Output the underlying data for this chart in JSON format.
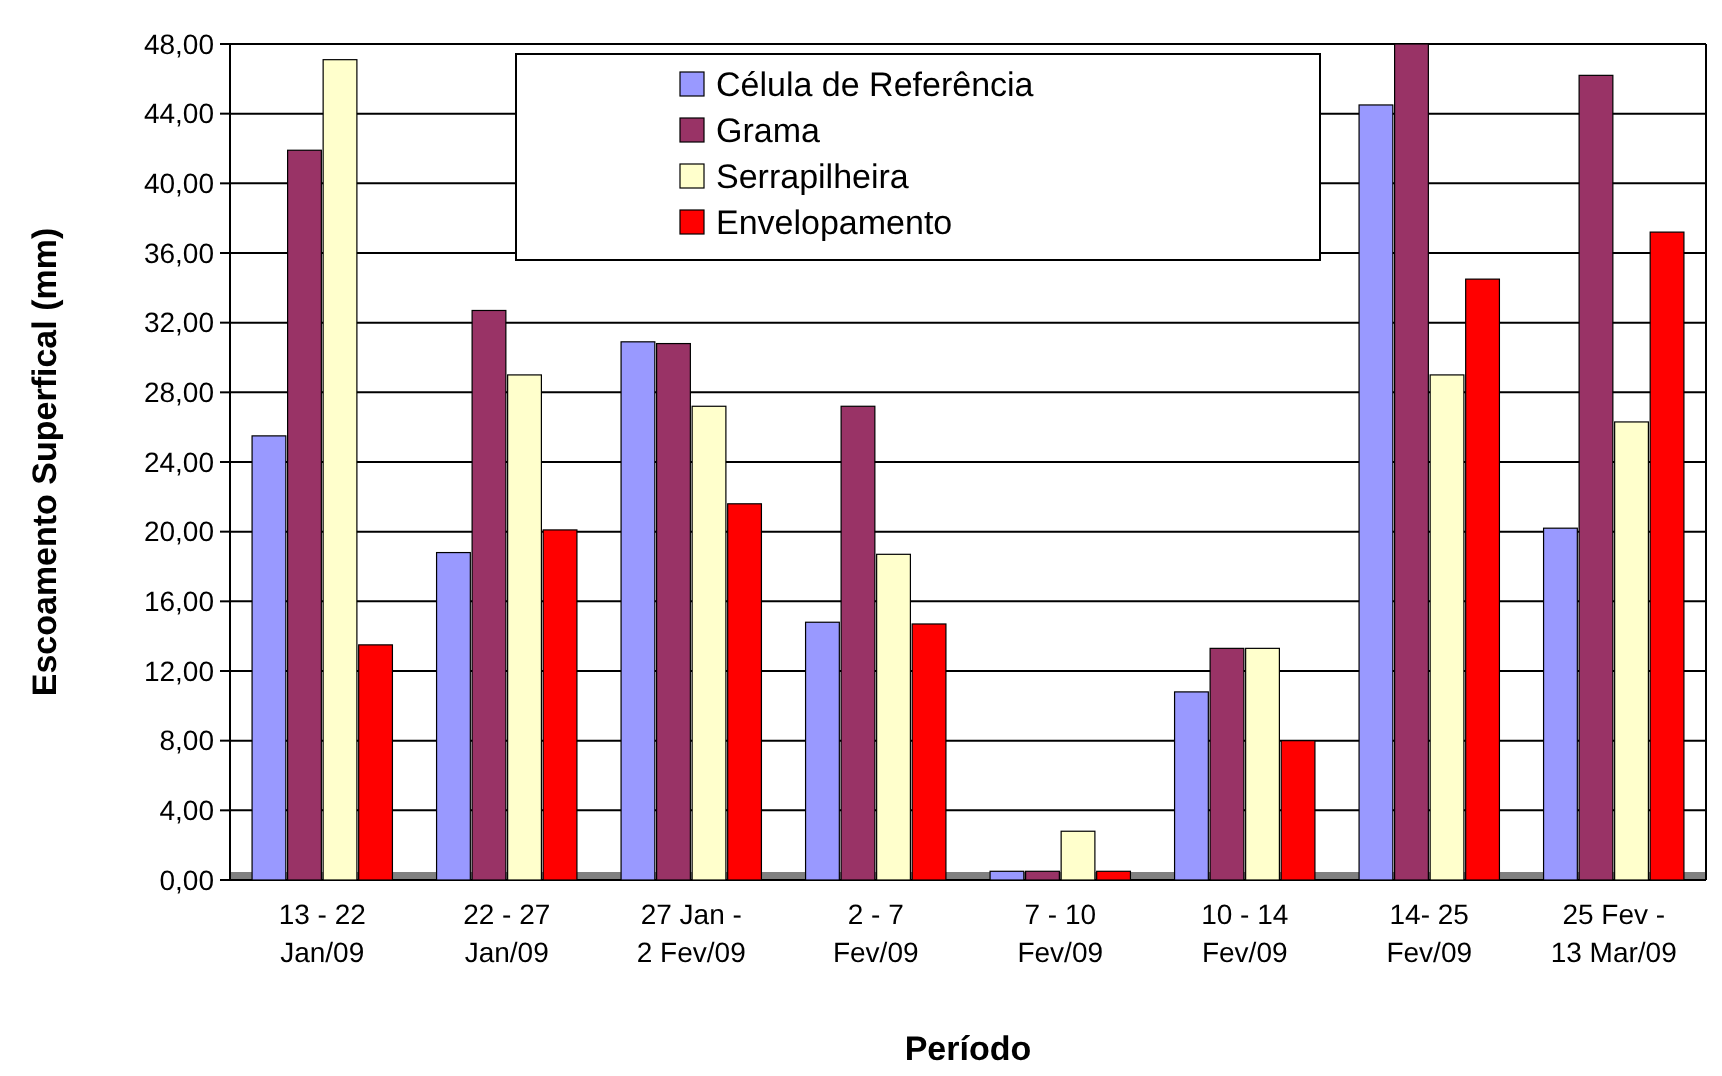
{
  "chart_data": {
    "type": "bar",
    "xlabel": "Período",
    "ylabel": "Escoamento Superfical (mm)",
    "categories": [
      "13 - 22\nJan/09",
      "22 - 27\nJan/09",
      "27 Jan -\n2 Fev/09",
      "2 - 7\nFev/09",
      "7 - 10\nFev/09",
      "10 - 14\nFev/09",
      "14- 25\nFev/09",
      "25 Fev -\n13 Mar/09"
    ],
    "series": [
      {
        "name": "Célula de Referência",
        "color": "#9999ff",
        "values": [
          25.5,
          18.8,
          30.9,
          14.8,
          0.5,
          10.8,
          44.5,
          20.2
        ]
      },
      {
        "name": "Grama",
        "color": "#993366",
        "values": [
          41.9,
          32.7,
          30.8,
          27.2,
          0.5,
          13.3,
          48.0,
          46.2
        ]
      },
      {
        "name": "Serrapilheira",
        "color": "#ffffcc",
        "values": [
          47.1,
          29.0,
          27.2,
          18.7,
          2.8,
          13.3,
          29.0,
          26.3
        ]
      },
      {
        "name": "Envelopamento",
        "color": "#ff0000",
        "values": [
          13.5,
          20.1,
          21.6,
          14.7,
          0.5,
          8.0,
          34.5,
          37.2
        ]
      }
    ],
    "ylim": [
      0,
      48
    ],
    "yticks": [
      {
        "value": 0,
        "label": "0,00"
      },
      {
        "value": 4,
        "label": "4,00"
      },
      {
        "value": 8,
        "label": "8,00"
      },
      {
        "value": 12,
        "label": "12,00"
      },
      {
        "value": 16,
        "label": "16,00"
      },
      {
        "value": 20,
        "label": "20,00"
      },
      {
        "value": 24,
        "label": "24,00"
      },
      {
        "value": 28,
        "label": "28,00"
      },
      {
        "value": 32,
        "label": "32,00"
      },
      {
        "value": 36,
        "label": "36,00"
      },
      {
        "value": 40,
        "label": "40,00"
      },
      {
        "value": 44,
        "label": "44,00"
      },
      {
        "value": 48,
        "label": "48,00"
      }
    ],
    "grid": "y",
    "legend": "top"
  }
}
